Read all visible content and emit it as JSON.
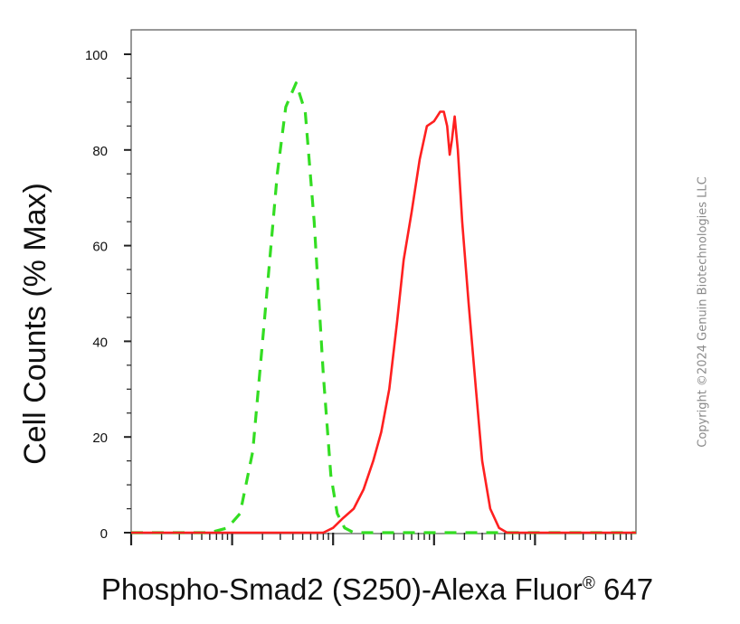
{
  "chart_data": {
    "type": "line",
    "xlabel": "Phospho-Smad2 (S250)-Alexa Fluor",
    "xlabel_sup": "®",
    "xlabel_suffix": " 647",
    "ylabel": "Cell Counts (% Max)",
    "ylim": [
      0,
      100
    ],
    "yticks": [
      "0",
      "20",
      "40",
      "60",
      "80",
      "100"
    ],
    "xscale": "log",
    "xlim": [
      0.1,
      10000
    ],
    "grid": false,
    "series": [
      {
        "style": "dashed",
        "color": "#33dd22",
        "x": [
          0.1,
          0.3,
          0.6,
          0.9,
          1.2,
          1.6,
          2.1,
          2.8,
          3.4,
          4.3,
          5.3,
          6.5,
          8,
          9.5,
          11,
          13,
          16,
          19,
          23,
          30,
          50,
          100,
          300,
          1000,
          10000
        ],
        "y": [
          0,
          0,
          0,
          1,
          4,
          17,
          45,
          75,
          89,
          94,
          88,
          65,
          33,
          12,
          4,
          1,
          0,
          0,
          0,
          0,
          0,
          0,
          0,
          0,
          0
        ]
      },
      {
        "style": "solid",
        "color": "#ff2020",
        "x": [
          0.1,
          1,
          5,
          8,
          10,
          12.5,
          16,
          20,
          25,
          30,
          36,
          43,
          50,
          60,
          72,
          85,
          100,
          115,
          125,
          135,
          143,
          150,
          160,
          172,
          190,
          220,
          260,
          300,
          360,
          440,
          530,
          640,
          780,
          1000,
          10000
        ],
        "y": [
          0,
          0,
          0,
          0,
          1,
          3,
          5,
          9,
          15,
          21,
          30,
          44,
          57,
          67,
          78,
          85,
          86,
          88,
          88,
          85,
          79,
          82,
          87,
          80,
          65,
          48,
          30,
          15,
          5,
          1,
          0,
          0,
          0,
          0,
          0
        ]
      }
    ]
  },
  "watermark": "Copyright ©2024 Genuin Biotechnologies LLC"
}
